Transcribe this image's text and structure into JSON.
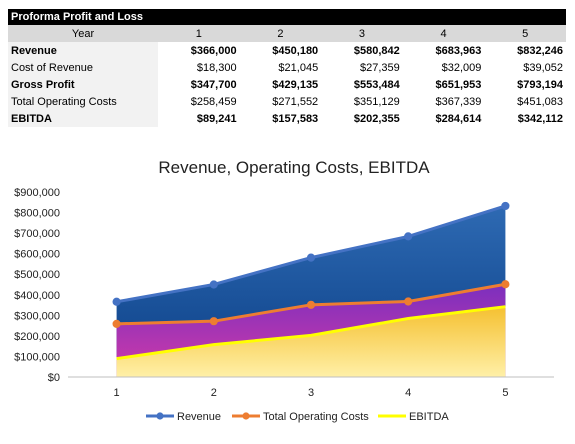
{
  "table": {
    "title": "Proforma Profit and Loss",
    "header_label": "Year",
    "years": [
      "1",
      "2",
      "3",
      "4",
      "5"
    ],
    "rows": [
      {
        "label": "Revenue",
        "bold": true,
        "values": [
          "$366,000",
          "$450,180",
          "$580,842",
          "$683,963",
          "$832,246"
        ]
      },
      {
        "label": "Cost of Revenue",
        "bold": false,
        "values": [
          "$18,300",
          "$21,045",
          "$27,359",
          "$32,009",
          "$39,052"
        ]
      },
      {
        "label": "Gross Profit",
        "bold": true,
        "values": [
          "$347,700",
          "$429,135",
          "$553,484",
          "$651,953",
          "$793,194"
        ]
      },
      {
        "label": "Total Operating Costs",
        "bold": false,
        "values": [
          "$258,459",
          "$271,552",
          "$351,129",
          "$367,339",
          "$451,083"
        ]
      },
      {
        "label": "EBITDA",
        "bold": true,
        "values": [
          "$89,241",
          "$157,583",
          "$202,355",
          "$284,614",
          "$342,112"
        ]
      }
    ]
  },
  "chart_data": {
    "type": "area",
    "title": "Revenue, Operating Costs, EBITDA",
    "xlabel": "",
    "ylabel": "",
    "categories": [
      "1",
      "2",
      "3",
      "4",
      "5"
    ],
    "ylim": [
      0,
      900000
    ],
    "yticks": [
      0,
      100000,
      200000,
      300000,
      400000,
      500000,
      600000,
      700000,
      800000,
      900000
    ],
    "ytick_labels": [
      "$0",
      "$100,000",
      "$200,000",
      "$300,000",
      "$400,000",
      "$500,000",
      "$600,000",
      "$700,000",
      "$800,000",
      "$900,000"
    ],
    "grid": false,
    "legend_position": "bottom",
    "series": [
      {
        "name": "Revenue",
        "values": [
          366000,
          450180,
          580842,
          683963,
          832246
        ],
        "line_color": "#4472c4",
        "fill_top": "#2e6ab3",
        "fill_bottom": "#0b3f86"
      },
      {
        "name": "Total Operating Costs",
        "values": [
          258459,
          271552,
          351129,
          367339,
          451083
        ],
        "line_color": "#ed7d31",
        "fill_top": "#7b2fbe",
        "fill_bottom": "#d23aa8"
      },
      {
        "name": "EBITDA",
        "values": [
          89241,
          157583,
          202355,
          284614,
          342112
        ],
        "line_color": "#ffff00",
        "fill_top": "#f5c030",
        "fill_bottom": "#fff0a8"
      }
    ]
  }
}
